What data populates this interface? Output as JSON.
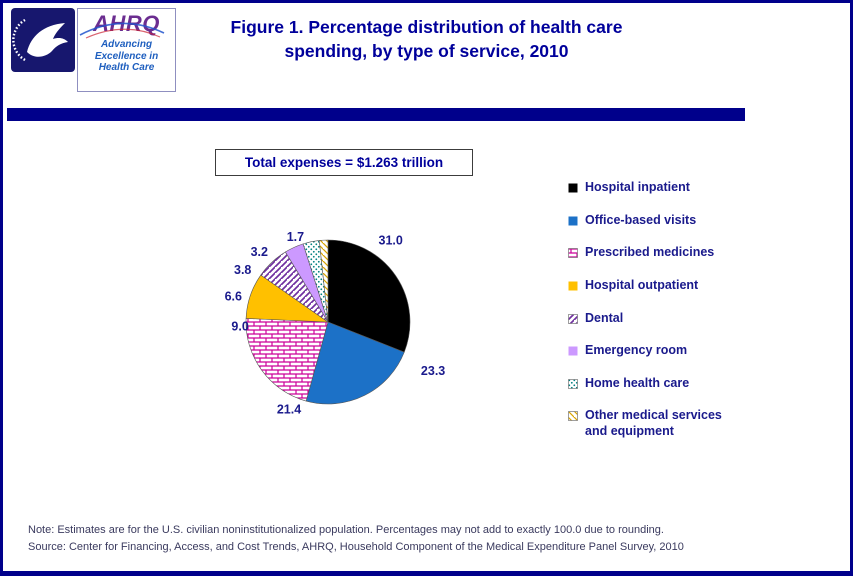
{
  "header": {
    "logo": {
      "wordmark": "AHRQ",
      "tagline": "Advancing Excellence in Health Care"
    }
  },
  "chart_data": {
    "type": "pie",
    "title": "Figure 1. Percentage distribution of health care spending, by type of service, 2010",
    "total_label": "Total expenses = $1.263 trillion",
    "unit": "percent",
    "start_angle_deg": -90,
    "direction": "clockwise",
    "legend_position": "right",
    "slices": [
      {
        "label": "Hospital inpatient",
        "value": 31.0,
        "display": "31.0",
        "pattern": "solid",
        "color": "#000000"
      },
      {
        "label": "Office-based visits",
        "value": 23.3,
        "display": "23.3",
        "pattern": "solid",
        "color": "#1C71C7"
      },
      {
        "label": "Prescribed medicines",
        "value": 21.4,
        "display": "21.4",
        "pattern": "brick",
        "color": "#CC0099"
      },
      {
        "label": "Hospital outpatient",
        "value": 9.0,
        "display": "9.0",
        "pattern": "solid",
        "color": "#FFC000"
      },
      {
        "label": "Dental",
        "value": 6.6,
        "display": "6.6",
        "pattern": "diagonal",
        "color": "#7030A0"
      },
      {
        "label": "Emergency room",
        "value": 3.8,
        "display": "3.8",
        "pattern": "solid",
        "color": "#CC99FF"
      },
      {
        "label": "Home health care",
        "value": 3.2,
        "display": "3.2",
        "pattern": "dots",
        "color": "#008080"
      },
      {
        "label": "Other medical services and equipment",
        "value": 1.7,
        "display": "1.7",
        "pattern": "diagonal-reverse",
        "color": "#D9A400"
      }
    ]
  },
  "footer": {
    "note": "Note: Estimates are for the U.S. civilian noninstitutionalized population. Percentages may not add to exactly 100.0 due to rounding.",
    "source": "Source: Center for Financing, Access, and Cost Trends, AHRQ, Household Component of the Medical Expenditure Panel Survey, 2010"
  },
  "colors": {
    "accent": "#00008B",
    "title_text": "#00009B",
    "legend_text": "#1A1A8C",
    "footer_text": "#3A3A5E"
  }
}
